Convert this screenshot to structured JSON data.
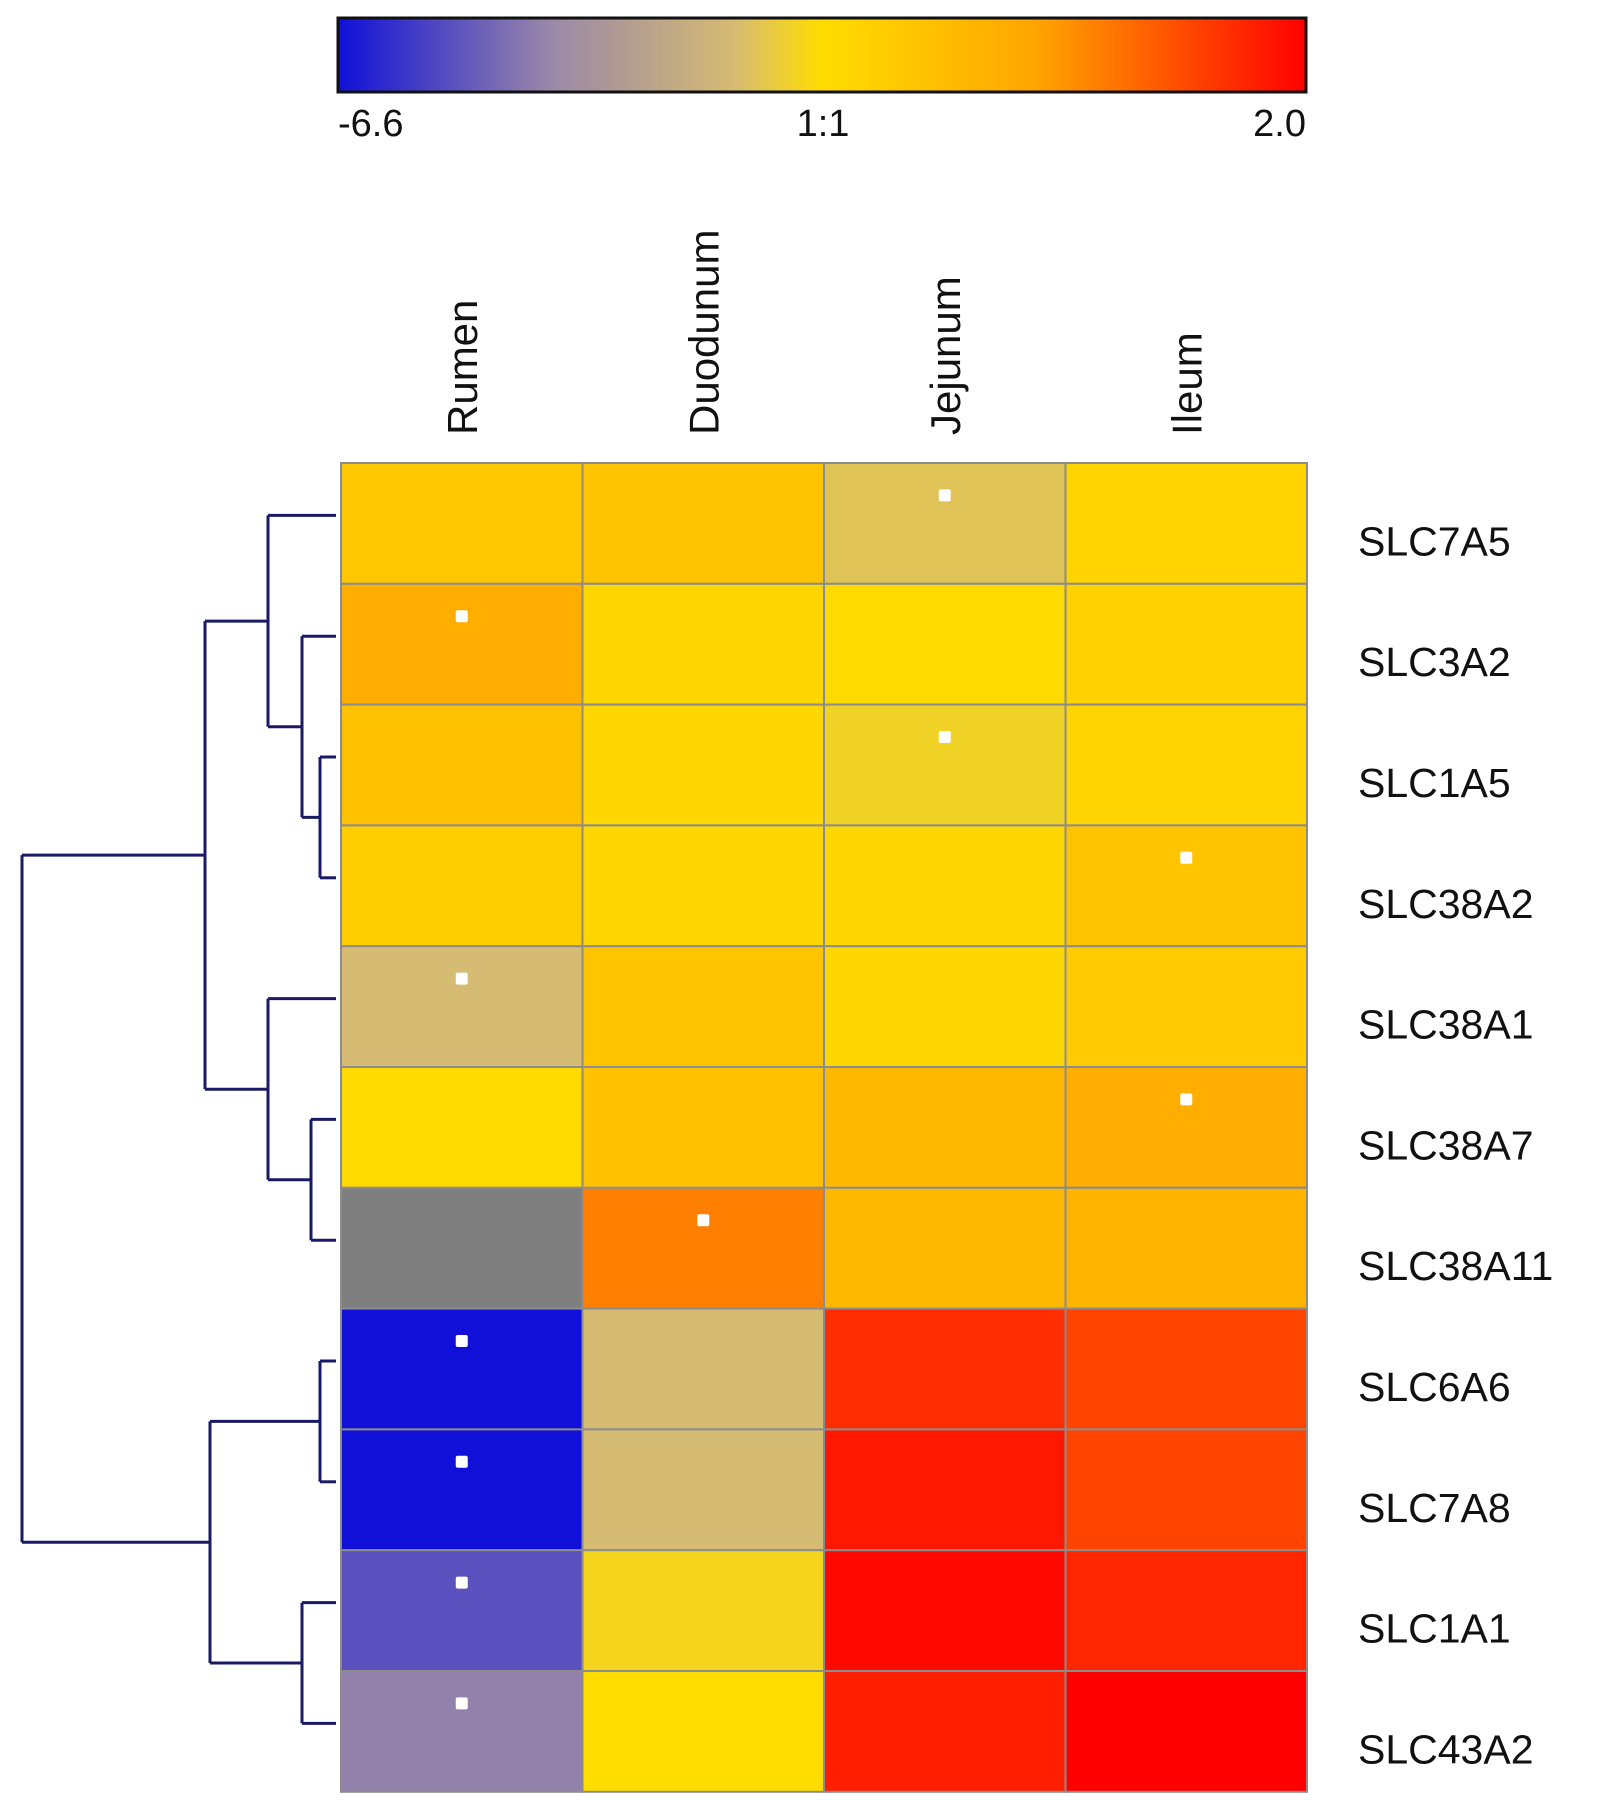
{
  "chart_data": {
    "type": "heatmap",
    "title": "",
    "colorbar": {
      "min_label": "-6.6",
      "mid_label": "1:1",
      "max_label": "2.0",
      "min": -6.6,
      "mid": 0,
      "max": 2.0,
      "colors": {
        "low": "#1010d8",
        "low_mid": "#9a88a8",
        "mid_low": "#d6bb72",
        "mid": "#ffdd00",
        "mid_high": "#ffa500",
        "high": "#ff0000"
      }
    },
    "columns": [
      "Rumen",
      "Duodunum",
      "Jejunum",
      "Ileum"
    ],
    "rows": [
      "SLC7A5",
      "SLC3A2",
      "SLC1A5",
      "SLC38A2",
      "SLC38A1",
      "SLC38A7",
      "SLC38A11",
      "SLC6A6",
      "SLC7A8",
      "SLC1A1",
      "SLC43A2"
    ],
    "values": [
      [
        0.35,
        0.4,
        -0.9,
        0.15
      ],
      [
        0.75,
        0.1,
        0.05,
        0.2
      ],
      [
        0.45,
        0.1,
        -0.4,
        0.15
      ],
      [
        0.25,
        0.1,
        0.1,
        0.4
      ],
      [
        -1.2,
        0.4,
        0.1,
        0.3
      ],
      [
        0.05,
        0.45,
        0.6,
        0.75
      ],
      [
        null,
        1.15,
        0.6,
        0.65
      ],
      [
        -6.6,
        -1.2,
        1.7,
        1.55
      ],
      [
        -6.6,
        -1.2,
        1.85,
        1.55
      ],
      [
        -5.0,
        -0.3,
        1.95,
        1.75
      ],
      [
        -3.8,
        0.0,
        1.8,
        2.0
      ]
    ],
    "missing_color": "#7f7f7f",
    "significant": [
      [
        false,
        false,
        true,
        false
      ],
      [
        true,
        false,
        false,
        false
      ],
      [
        false,
        false,
        true,
        false
      ],
      [
        false,
        false,
        false,
        true
      ],
      [
        true,
        false,
        false,
        false
      ],
      [
        false,
        false,
        false,
        true
      ],
      [
        false,
        true,
        false,
        false
      ],
      [
        true,
        false,
        false,
        false
      ],
      [
        true,
        false,
        false,
        false
      ],
      [
        true,
        false,
        false,
        false
      ],
      [
        true,
        false,
        false,
        false
      ]
    ],
    "dendrogram_color": "#1a1a66",
    "grid_color": "#8c8c8c"
  }
}
